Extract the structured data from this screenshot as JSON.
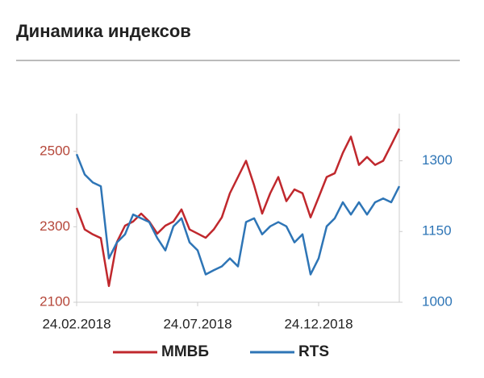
{
  "chart_data": {
    "type": "line",
    "title": "Динамика индексов",
    "categories": [
      "24.02.2018",
      null,
      null,
      null,
      null,
      null,
      null,
      null,
      null,
      null,
      null,
      null,
      null,
      null,
      null,
      "24.07.2018",
      null,
      null,
      null,
      null,
      null,
      null,
      null,
      null,
      null,
      null,
      null,
      null,
      null,
      null,
      "24.12.2018",
      null,
      null,
      null,
      null,
      null,
      null,
      null,
      null,
      null,
      null
    ],
    "series": [
      {
        "name": "ММВБ",
        "color": "#c0282d",
        "axis": "y",
        "values": [
          2350,
          2293,
          2280,
          2270,
          2143,
          2260,
          2303,
          2314,
          2335,
          2314,
          2282,
          2303,
          2314,
          2346,
          2293,
          2282,
          2271,
          2293,
          2325,
          2389,
          2432,
          2475,
          2410,
          2335,
          2389,
          2432,
          2368,
          2399,
          2389,
          2325,
          2378,
          2432,
          2442,
          2496,
          2539,
          2464,
          2485,
          2464,
          2475,
          2517,
          2560
        ]
      },
      {
        "name": "RTS",
        "color": "#2e75b6",
        "axis": "y2",
        "values": [
          1314,
          1271,
          1254,
          1246,
          1093,
          1127,
          1144,
          1186,
          1178,
          1170,
          1136,
          1110,
          1161,
          1178,
          1127,
          1110,
          1059,
          1068,
          1076,
          1093,
          1076,
          1170,
          1178,
          1144,
          1161,
          1170,
          1161,
          1127,
          1144,
          1059,
          1093,
          1161,
          1178,
          1212,
          1186,
          1212,
          1186,
          1212,
          1220,
          1212,
          1246
        ]
      }
    ],
    "ylim": [
      2100,
      2600
    ],
    "yticks": [
      2100,
      2300,
      2500
    ],
    "ytick_color": "#b5473a",
    "y2lim": [
      1000,
      1400
    ],
    "y2ticks": [
      1000,
      1150,
      1300
    ],
    "y2tick_color": "#2e75b6",
    "legend": "bottom",
    "grid": false
  }
}
